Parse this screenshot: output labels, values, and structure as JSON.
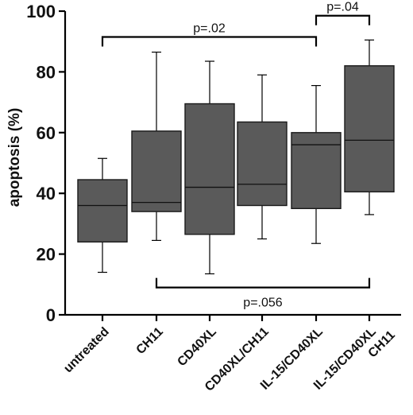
{
  "chart_data": {
    "type": "box",
    "ylabel": "apoptosis (%)",
    "xlabel": "",
    "ylim": [
      0,
      100
    ],
    "yticks": [
      0,
      20,
      40,
      60,
      80,
      100
    ],
    "categories": [
      "untreated",
      "CH11",
      "CD40XL",
      "CD40XL/CH11",
      "IL-15/CD40XL",
      "IL-15/CD40XL\nCH11"
    ],
    "boxes": [
      {
        "min": 14,
        "q1": 24,
        "median": 36,
        "q3": 44.5,
        "max": 51.5
      },
      {
        "min": 24.5,
        "q1": 34,
        "median": 37,
        "q3": 60.5,
        "max": 86.5
      },
      {
        "min": 13.5,
        "q1": 26.5,
        "median": 42,
        "q3": 69.5,
        "max": 83.5
      },
      {
        "min": 25,
        "q1": 36,
        "median": 43,
        "q3": 63.5,
        "max": 79
      },
      {
        "min": 23.5,
        "q1": 35,
        "median": 56,
        "q3": 60,
        "max": 75.5
      },
      {
        "min": 33,
        "q1": 40.5,
        "median": 57.5,
        "q3": 82,
        "max": 90.5
      }
    ],
    "annotations": [
      {
        "text": "p=.02",
        "from": 0,
        "to": 4,
        "y": 91.5,
        "side": "top"
      },
      {
        "text": "p=.04",
        "from": 4,
        "to": 5,
        "y": 98.5,
        "side": "top"
      },
      {
        "text": "p=.056",
        "from": 1,
        "to": 5,
        "y": 9,
        "side": "bottom"
      }
    ],
    "grid": false,
    "colors": {
      "box_fill": "#5a5a5a",
      "lines": "#000000"
    }
  }
}
